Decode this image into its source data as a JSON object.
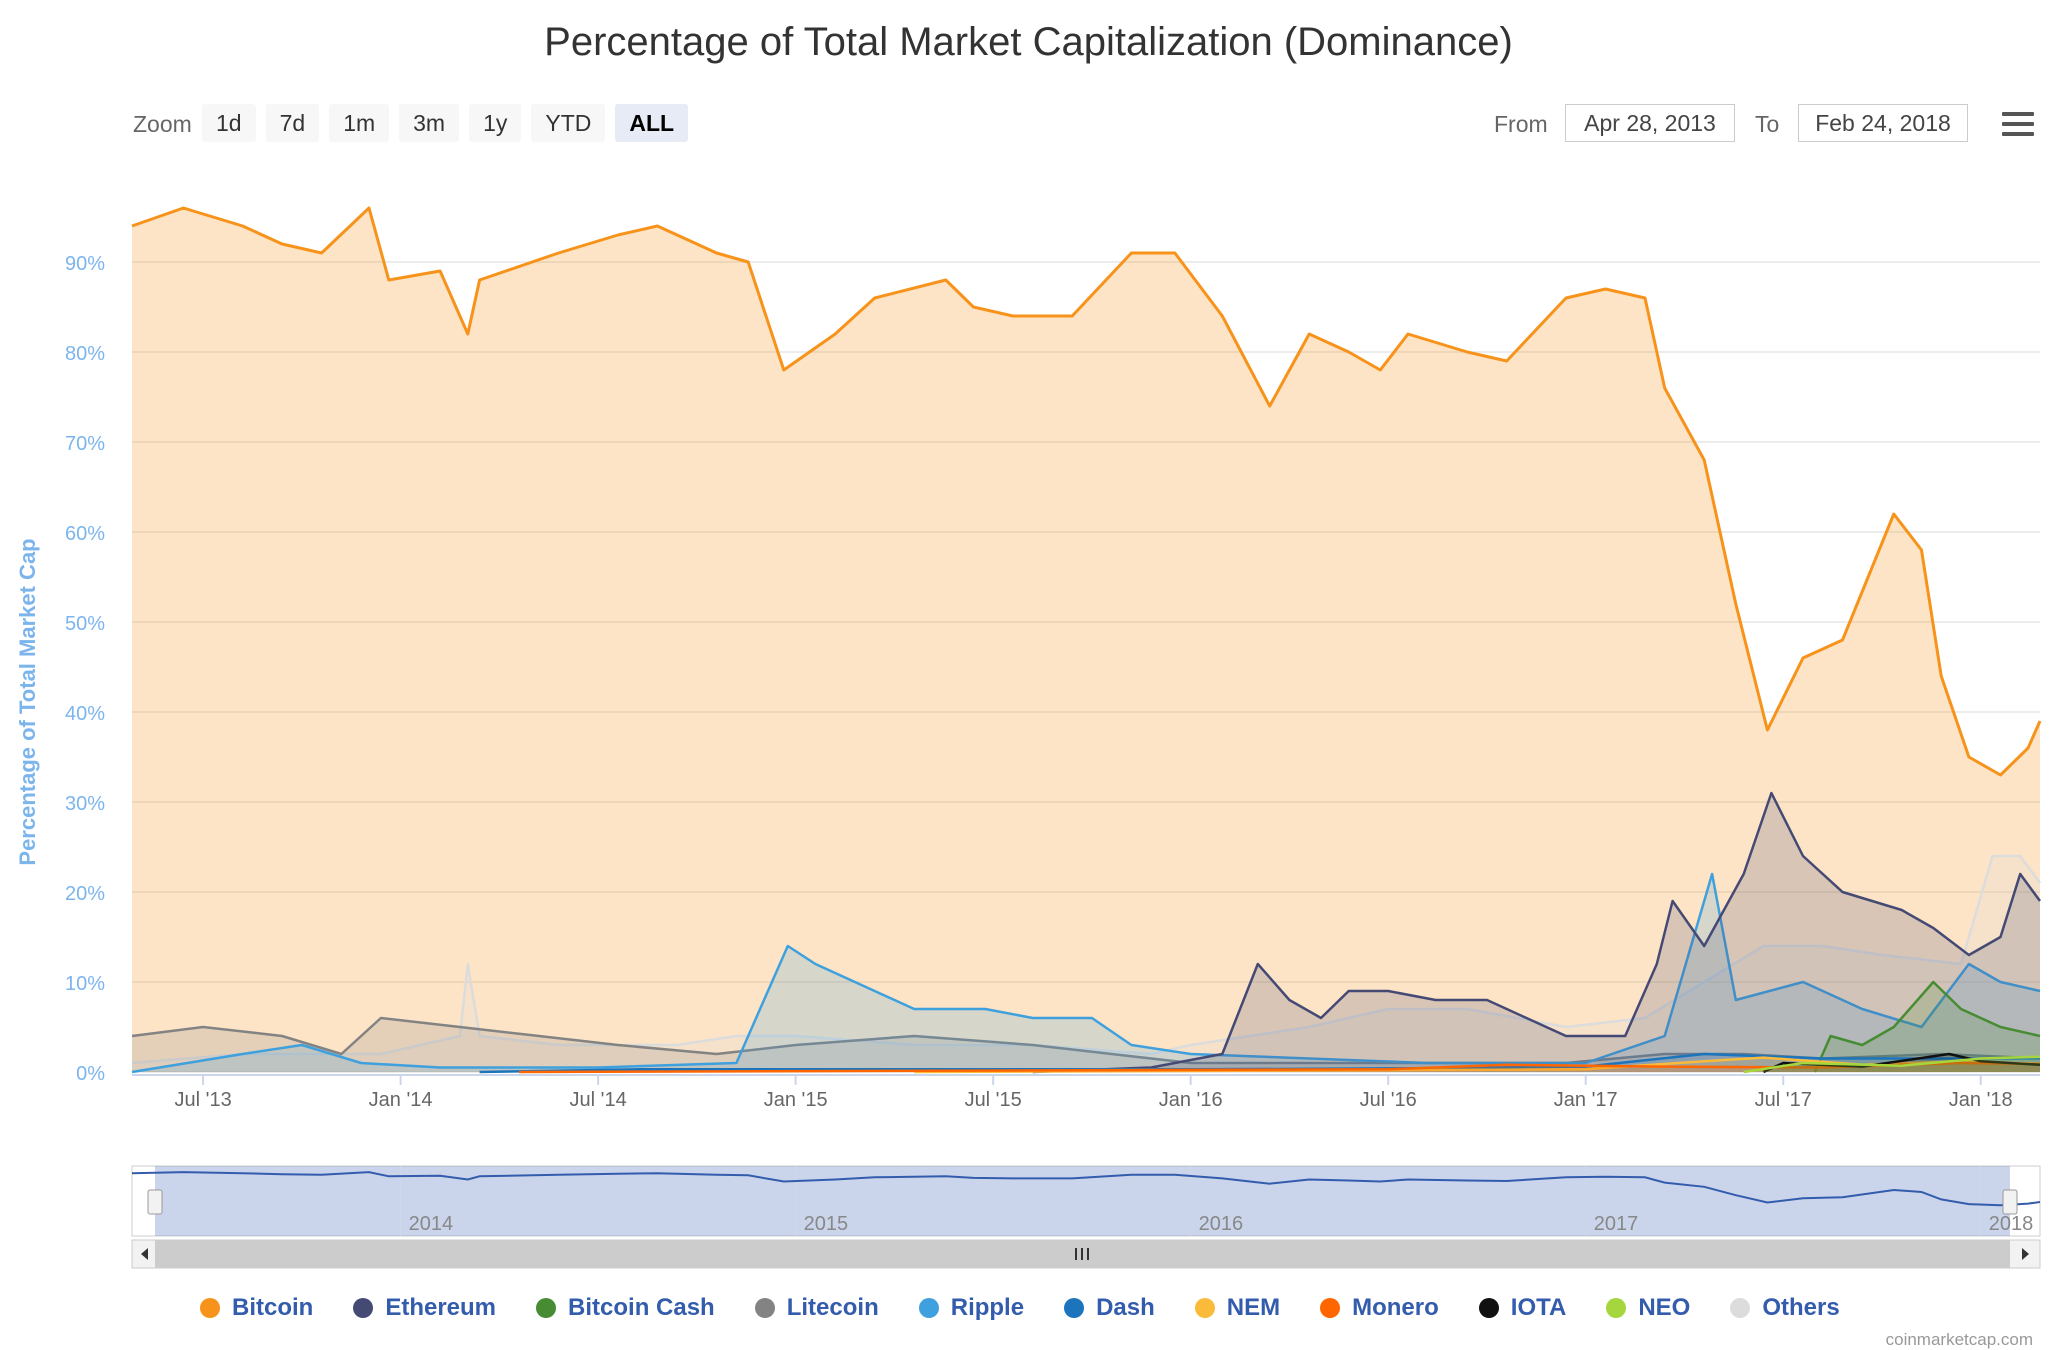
{
  "title": "Percentage of Total Market Capitalization (Dominance)",
  "toolbar": {
    "zoom_label": "Zoom",
    "zoom_buttons": [
      "1d",
      "7d",
      "1m",
      "3m",
      "1y",
      "YTD",
      "ALL"
    ],
    "active_zoom": "ALL",
    "from_label": "From",
    "from_value": "Apr 28, 2013",
    "to_label": "To",
    "to_value": "Feb 24, 2018"
  },
  "credit": "coinmarketcap.com",
  "colors": {
    "Bitcoin": "#f7931a",
    "Ethereum": "#454a75",
    "Bitcoin Cash": "#478c33",
    "Litecoin": "#838383",
    "Ripple": "#3fa0de",
    "Dash": "#1c75bc",
    "NEM": "#fbbb3a",
    "Monero": "#ff6600",
    "IOTA": "#111111",
    "NEO": "#a6d63d",
    "Others": "#dcdcdc"
  },
  "chart_data": {
    "type": "area",
    "title": "Percentage of Total Market Capitalization (Dominance)",
    "ylabel": "Percentage of Total Market Cap",
    "xlabel": "",
    "x_range": [
      "2013-04-28",
      "2018-02-24"
    ],
    "ylim": [
      0,
      100
    ],
    "y_ticks": [
      "0%",
      "10%",
      "20%",
      "30%",
      "40%",
      "50%",
      "60%",
      "70%",
      "80%",
      "90%"
    ],
    "x_ticks": [
      {
        "label": "Jul '13",
        "x": 2013.5
      },
      {
        "label": "Jan '14",
        "x": 2014.0
      },
      {
        "label": "Jul '14",
        "x": 2014.5
      },
      {
        "label": "Jan '15",
        "x": 2015.0
      },
      {
        "label": "Jul '15",
        "x": 2015.5
      },
      {
        "label": "Jan '16",
        "x": 2016.0
      },
      {
        "label": "Jul '16",
        "x": 2016.5
      },
      {
        "label": "Jan '17",
        "x": 2017.0
      },
      {
        "label": "Jul '17",
        "x": 2017.5
      },
      {
        "label": "Jan '18",
        "x": 2018.0
      }
    ],
    "navigator_ticks": [
      {
        "label": "2014",
        "x": 2014.0
      },
      {
        "label": "2015",
        "x": 2015.0
      },
      {
        "label": "2016",
        "x": 2016.0
      },
      {
        "label": "2017",
        "x": 2017.0
      },
      {
        "label": "2018",
        "x": 2018.0
      }
    ],
    "legend": [
      "Bitcoin",
      "Ethereum",
      "Bitcoin Cash",
      "Litecoin",
      "Ripple",
      "Dash",
      "NEM",
      "Monero",
      "IOTA",
      "NEO",
      "Others"
    ],
    "series": [
      {
        "name": "Bitcoin",
        "points": [
          [
            2013.32,
            94
          ],
          [
            2013.45,
            96
          ],
          [
            2013.6,
            94
          ],
          [
            2013.7,
            92
          ],
          [
            2013.8,
            91
          ],
          [
            2013.92,
            96
          ],
          [
            2013.97,
            88
          ],
          [
            2014.1,
            89
          ],
          [
            2014.17,
            82
          ],
          [
            2014.2,
            88
          ],
          [
            2014.4,
            91
          ],
          [
            2014.55,
            93
          ],
          [
            2014.65,
            94
          ],
          [
            2014.8,
            91
          ],
          [
            2014.88,
            90
          ],
          [
            2014.97,
            78
          ],
          [
            2015.1,
            82
          ],
          [
            2015.2,
            86
          ],
          [
            2015.38,
            88
          ],
          [
            2015.45,
            85
          ],
          [
            2015.55,
            84
          ],
          [
            2015.7,
            84
          ],
          [
            2015.85,
            91
          ],
          [
            2015.96,
            91
          ],
          [
            2016.08,
            84
          ],
          [
            2016.2,
            74
          ],
          [
            2016.3,
            82
          ],
          [
            2016.4,
            80
          ],
          [
            2016.48,
            78
          ],
          [
            2016.55,
            82
          ],
          [
            2016.7,
            80
          ],
          [
            2016.8,
            79
          ],
          [
            2016.95,
            86
          ],
          [
            2017.05,
            87
          ],
          [
            2017.15,
            86
          ],
          [
            2017.2,
            76
          ],
          [
            2017.3,
            68
          ],
          [
            2017.38,
            52
          ],
          [
            2017.46,
            38
          ],
          [
            2017.55,
            46
          ],
          [
            2017.65,
            48
          ],
          [
            2017.78,
            62
          ],
          [
            2017.85,
            58
          ],
          [
            2017.9,
            44
          ],
          [
            2017.97,
            35
          ],
          [
            2018.05,
            33
          ],
          [
            2018.12,
            36
          ],
          [
            2018.15,
            39
          ]
        ]
      },
      {
        "name": "Ethereum",
        "points": [
          [
            2015.6,
            0
          ],
          [
            2015.9,
            0.5
          ],
          [
            2016.08,
            2
          ],
          [
            2016.17,
            12
          ],
          [
            2016.25,
            8
          ],
          [
            2016.33,
            6
          ],
          [
            2016.4,
            9
          ],
          [
            2016.5,
            9
          ],
          [
            2016.62,
            8
          ],
          [
            2016.75,
            8
          ],
          [
            2016.85,
            6
          ],
          [
            2016.95,
            4
          ],
          [
            2017.1,
            4
          ],
          [
            2017.18,
            12
          ],
          [
            2017.22,
            19
          ],
          [
            2017.3,
            14
          ],
          [
            2017.4,
            22
          ],
          [
            2017.47,
            31
          ],
          [
            2017.55,
            24
          ],
          [
            2017.65,
            20
          ],
          [
            2017.8,
            18
          ],
          [
            2017.88,
            16
          ],
          [
            2017.97,
            13
          ],
          [
            2018.05,
            15
          ],
          [
            2018.1,
            22
          ],
          [
            2018.15,
            19
          ]
        ]
      },
      {
        "name": "Bitcoin Cash",
        "points": [
          [
            2017.58,
            0
          ],
          [
            2017.62,
            4
          ],
          [
            2017.7,
            3
          ],
          [
            2017.78,
            5
          ],
          [
            2017.88,
            10
          ],
          [
            2017.95,
            7
          ],
          [
            2018.05,
            5
          ],
          [
            2018.15,
            4
          ]
        ]
      },
      {
        "name": "Litecoin",
        "points": [
          [
            2013.32,
            4
          ],
          [
            2013.5,
            5
          ],
          [
            2013.7,
            4
          ],
          [
            2013.85,
            2
          ],
          [
            2013.95,
            6
          ],
          [
            2014.15,
            5
          ],
          [
            2014.35,
            4
          ],
          [
            2014.55,
            3
          ],
          [
            2014.8,
            2
          ],
          [
            2015.0,
            3
          ],
          [
            2015.3,
            4
          ],
          [
            2015.6,
            3
          ],
          [
            2015.8,
            2
          ],
          [
            2016.0,
            1
          ],
          [
            2016.5,
            1
          ],
          [
            2016.95,
            1
          ],
          [
            2017.2,
            2
          ],
          [
            2017.4,
            2
          ],
          [
            2017.6,
            1.5
          ],
          [
            2017.9,
            2
          ],
          [
            2018.15,
            1.5
          ]
        ]
      },
      {
        "name": "Ripple",
        "points": [
          [
            2013.32,
            0
          ],
          [
            2013.6,
            2
          ],
          [
            2013.75,
            3
          ],
          [
            2013.9,
            1
          ],
          [
            2014.1,
            0.5
          ],
          [
            2014.5,
            0.5
          ],
          [
            2014.85,
            1
          ],
          [
            2014.92,
            8
          ],
          [
            2014.98,
            14
          ],
          [
            2015.05,
            12
          ],
          [
            2015.15,
            10
          ],
          [
            2015.3,
            7
          ],
          [
            2015.48,
            7
          ],
          [
            2015.6,
            6
          ],
          [
            2015.75,
            6
          ],
          [
            2015.85,
            3
          ],
          [
            2016.0,
            2
          ],
          [
            2016.3,
            1.5
          ],
          [
            2016.6,
            1
          ],
          [
            2017.0,
            1
          ],
          [
            2017.2,
            4
          ],
          [
            2017.32,
            22
          ],
          [
            2017.38,
            8
          ],
          [
            2017.55,
            10
          ],
          [
            2017.7,
            7
          ],
          [
            2017.85,
            5
          ],
          [
            2017.97,
            12
          ],
          [
            2018.05,
            10
          ],
          [
            2018.15,
            9
          ]
        ]
      },
      {
        "name": "Dash",
        "points": [
          [
            2014.2,
            0
          ],
          [
            2014.6,
            0.3
          ],
          [
            2015.5,
            0.3
          ],
          [
            2016.0,
            0.3
          ],
          [
            2016.5,
            0.4
          ],
          [
            2017.0,
            0.6
          ],
          [
            2017.3,
            2
          ],
          [
            2017.6,
            1.5
          ],
          [
            2017.9,
            1.5
          ],
          [
            2018.15,
            1.5
          ]
        ]
      },
      {
        "name": "NEM",
        "points": [
          [
            2015.3,
            0
          ],
          [
            2016.5,
            0.2
          ],
          [
            2017.0,
            0.3
          ],
          [
            2017.3,
            1.2
          ],
          [
            2017.45,
            1.6
          ],
          [
            2017.7,
            0.8
          ],
          [
            2017.95,
            1.2
          ],
          [
            2018.15,
            0.9
          ]
        ]
      },
      {
        "name": "Monero",
        "points": [
          [
            2014.3,
            0
          ],
          [
            2016.5,
            0.3
          ],
          [
            2016.8,
            0.8
          ],
          [
            2017.2,
            0.6
          ],
          [
            2017.6,
            0.5
          ],
          [
            2017.95,
            1
          ],
          [
            2018.15,
            0.9
          ]
        ]
      },
      {
        "name": "IOTA",
        "points": [
          [
            2017.45,
            0
          ],
          [
            2017.5,
            1
          ],
          [
            2017.7,
            0.6
          ],
          [
            2017.92,
            2
          ],
          [
            2018.0,
            1.2
          ],
          [
            2018.15,
            0.8
          ]
        ]
      },
      {
        "name": "NEO",
        "points": [
          [
            2017.4,
            0
          ],
          [
            2017.55,
            1
          ],
          [
            2017.8,
            0.7
          ],
          [
            2018.0,
            1.5
          ],
          [
            2018.15,
            1.7
          ]
        ]
      },
      {
        "name": "Others",
        "points": [
          [
            2013.32,
            1
          ],
          [
            2013.6,
            2
          ],
          [
            2013.95,
            2
          ],
          [
            2014.15,
            4
          ],
          [
            2014.17,
            12
          ],
          [
            2014.2,
            4
          ],
          [
            2014.4,
            3
          ],
          [
            2014.7,
            3
          ],
          [
            2014.85,
            4
          ],
          [
            2015.0,
            4
          ],
          [
            2015.3,
            3
          ],
          [
            2015.6,
            3
          ],
          [
            2015.9,
            2
          ],
          [
            2016.0,
            3
          ],
          [
            2016.3,
            5
          ],
          [
            2016.5,
            7
          ],
          [
            2016.7,
            7
          ],
          [
            2016.95,
            5
          ],
          [
            2017.15,
            6
          ],
          [
            2017.3,
            10
          ],
          [
            2017.45,
            14
          ],
          [
            2017.6,
            14
          ],
          [
            2017.75,
            13
          ],
          [
            2017.95,
            12
          ],
          [
            2018.03,
            24
          ],
          [
            2018.1,
            24
          ],
          [
            2018.15,
            21
          ]
        ]
      }
    ]
  }
}
